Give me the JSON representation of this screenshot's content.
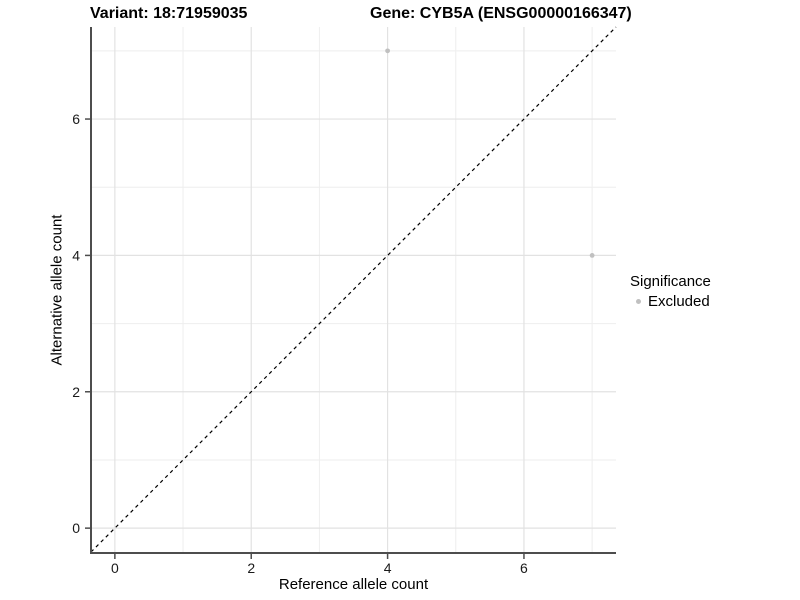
{
  "titles": {
    "left": "Variant: 18:71959035",
    "right": "Gene: CYB5A (ENSG00000166347)"
  },
  "chart_data": {
    "type": "scatter",
    "xlabel": "Reference allele count",
    "ylabel": "Alternative allele count",
    "xlim": [
      -0.35,
      7.35
    ],
    "ylim": [
      -0.35,
      7.35
    ],
    "major_ticks": [
      0,
      2,
      4,
      6
    ],
    "minor_ticks": [
      1,
      3,
      5,
      7
    ],
    "grid": "major and minor gridlines on white background",
    "identity_line": {
      "equation": "y = x",
      "style": "dashed",
      "color": "#000000"
    },
    "series": [
      {
        "name": "Excluded",
        "color": "#c0c0c0",
        "points": [
          {
            "x": 4,
            "y": 7
          },
          {
            "x": 7,
            "y": 4
          }
        ]
      }
    ],
    "legend": {
      "title": "Significance",
      "position": "right",
      "items": [
        {
          "label": "Excluded",
          "color": "#c0c0c0"
        }
      ]
    },
    "colors": {
      "axis_line": "#4d4d4d",
      "tick_mark": "#4d4d4d",
      "tick_label": "#1a1a1a",
      "grid_major": "#e2e2e2",
      "grid_minor": "#eeeeee",
      "background": "#ffffff"
    }
  }
}
